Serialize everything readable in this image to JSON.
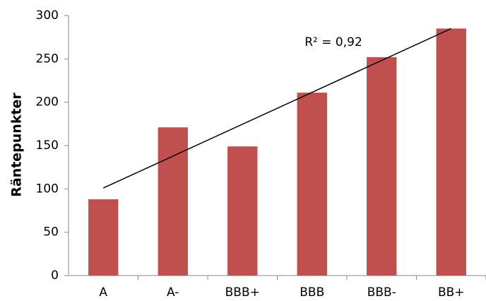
{
  "chart_data": {
    "type": "bar",
    "y_label": "Räntepunkter",
    "annotation": "R² = 0,92",
    "categories": [
      "A",
      "A-",
      "BBB+",
      "BBB",
      "BBB-",
      "BB+"
    ],
    "values": [
      88,
      171,
      149,
      211,
      252,
      285
    ],
    "color": "#c0504d",
    "trendline": [
      101,
      285
    ],
    "ylim": [
      0,
      300
    ],
    "yticks": [
      0,
      50,
      100,
      150,
      200,
      250,
      300
    ],
    "grid": false
  }
}
